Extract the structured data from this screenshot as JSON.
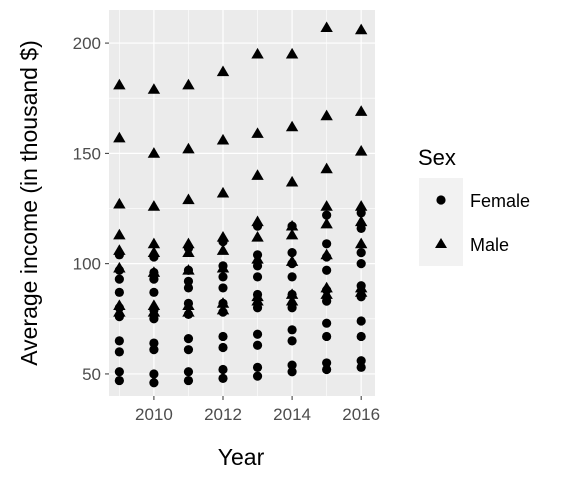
{
  "chart_data": {
    "type": "scatter",
    "title": "",
    "xlabel": "Year",
    "ylabel": "Average income (in thousand $)",
    "xlim": [
      2008.7,
      2016.4
    ],
    "ylim": [
      40,
      215
    ],
    "x_ticks": [
      2010,
      2012,
      2014,
      2016
    ],
    "x_tick_labels": [
      "2010",
      "2012",
      "2014",
      "2016"
    ],
    "y_ticks": [
      50,
      100,
      150,
      200
    ],
    "y_tick_labels": [
      "50",
      "100",
      "150",
      "200"
    ],
    "grid": true,
    "panel_background": "#ebebeb",
    "grid_color": "#ffffff",
    "point_color": "#000000",
    "legend": {
      "title": "Sex",
      "position": "right",
      "entries": [
        {
          "label": "Female",
          "shape": "circle"
        },
        {
          "label": "Male",
          "shape": "triangle"
        }
      ]
    },
    "series": [
      {
        "name": "Female",
        "shape": "circle",
        "points": [
          {
            "x": 2009,
            "y": 47
          },
          {
            "x": 2009,
            "y": 51
          },
          {
            "x": 2009,
            "y": 60
          },
          {
            "x": 2009,
            "y": 65
          },
          {
            "x": 2009,
            "y": 76
          },
          {
            "x": 2009,
            "y": 80
          },
          {
            "x": 2009,
            "y": 87
          },
          {
            "x": 2009,
            "y": 93
          },
          {
            "x": 2009,
            "y": 97
          },
          {
            "x": 2009,
            "y": 104
          },
          {
            "x": 2010,
            "y": 46
          },
          {
            "x": 2010,
            "y": 50
          },
          {
            "x": 2010,
            "y": 61
          },
          {
            "x": 2010,
            "y": 64
          },
          {
            "x": 2010,
            "y": 75
          },
          {
            "x": 2010,
            "y": 79
          },
          {
            "x": 2010,
            "y": 87
          },
          {
            "x": 2010,
            "y": 93
          },
          {
            "x": 2010,
            "y": 96
          },
          {
            "x": 2010,
            "y": 103
          },
          {
            "x": 2011,
            "y": 47
          },
          {
            "x": 2011,
            "y": 51
          },
          {
            "x": 2011,
            "y": 61
          },
          {
            "x": 2011,
            "y": 66
          },
          {
            "x": 2011,
            "y": 77
          },
          {
            "x": 2011,
            "y": 82
          },
          {
            "x": 2011,
            "y": 89
          },
          {
            "x": 2011,
            "y": 92
          },
          {
            "x": 2011,
            "y": 97
          },
          {
            "x": 2011,
            "y": 107
          },
          {
            "x": 2012,
            "y": 48
          },
          {
            "x": 2012,
            "y": 52
          },
          {
            "x": 2012,
            "y": 62
          },
          {
            "x": 2012,
            "y": 67
          },
          {
            "x": 2012,
            "y": 78
          },
          {
            "x": 2012,
            "y": 82
          },
          {
            "x": 2012,
            "y": 89
          },
          {
            "x": 2012,
            "y": 94
          },
          {
            "x": 2012,
            "y": 99
          },
          {
            "x": 2012,
            "y": 110
          },
          {
            "x": 2013,
            "y": 49
          },
          {
            "x": 2013,
            "y": 53
          },
          {
            "x": 2013,
            "y": 63
          },
          {
            "x": 2013,
            "y": 68
          },
          {
            "x": 2013,
            "y": 80
          },
          {
            "x": 2013,
            "y": 86
          },
          {
            "x": 2013,
            "y": 94
          },
          {
            "x": 2013,
            "y": 99
          },
          {
            "x": 2013,
            "y": 104
          },
          {
            "x": 2013,
            "y": 117
          },
          {
            "x": 2014,
            "y": 51
          },
          {
            "x": 2014,
            "y": 54
          },
          {
            "x": 2014,
            "y": 65
          },
          {
            "x": 2014,
            "y": 70
          },
          {
            "x": 2014,
            "y": 80
          },
          {
            "x": 2014,
            "y": 86
          },
          {
            "x": 2014,
            "y": 94
          },
          {
            "x": 2014,
            "y": 100
          },
          {
            "x": 2014,
            "y": 105
          },
          {
            "x": 2014,
            "y": 117
          },
          {
            "x": 2015,
            "y": 52
          },
          {
            "x": 2015,
            "y": 55
          },
          {
            "x": 2015,
            "y": 67
          },
          {
            "x": 2015,
            "y": 73
          },
          {
            "x": 2015,
            "y": 83
          },
          {
            "x": 2015,
            "y": 88
          },
          {
            "x": 2015,
            "y": 97
          },
          {
            "x": 2015,
            "y": 103
          },
          {
            "x": 2015,
            "y": 109
          },
          {
            "x": 2015,
            "y": 122
          },
          {
            "x": 2016,
            "y": 53
          },
          {
            "x": 2016,
            "y": 56
          },
          {
            "x": 2016,
            "y": 67
          },
          {
            "x": 2016,
            "y": 74
          },
          {
            "x": 2016,
            "y": 85
          },
          {
            "x": 2016,
            "y": 90
          },
          {
            "x": 2016,
            "y": 100
          },
          {
            "x": 2016,
            "y": 105
          },
          {
            "x": 2016,
            "y": 116
          },
          {
            "x": 2016,
            "y": 123
          }
        ]
      },
      {
        "name": "Male",
        "shape": "triangle",
        "points": [
          {
            "x": 2009,
            "y": 78
          },
          {
            "x": 2009,
            "y": 81
          },
          {
            "x": 2009,
            "y": 98
          },
          {
            "x": 2009,
            "y": 106
          },
          {
            "x": 2009,
            "y": 113
          },
          {
            "x": 2009,
            "y": 127
          },
          {
            "x": 2009,
            "y": 157
          },
          {
            "x": 2009,
            "y": 181
          },
          {
            "x": 2010,
            "y": 78
          },
          {
            "x": 2010,
            "y": 81
          },
          {
            "x": 2010,
            "y": 96
          },
          {
            "x": 2010,
            "y": 105
          },
          {
            "x": 2010,
            "y": 109
          },
          {
            "x": 2010,
            "y": 126
          },
          {
            "x": 2010,
            "y": 150
          },
          {
            "x": 2010,
            "y": 179
          },
          {
            "x": 2011,
            "y": 78
          },
          {
            "x": 2011,
            "y": 81
          },
          {
            "x": 2011,
            "y": 97
          },
          {
            "x": 2011,
            "y": 105
          },
          {
            "x": 2011,
            "y": 109
          },
          {
            "x": 2011,
            "y": 129
          },
          {
            "x": 2011,
            "y": 152
          },
          {
            "x": 2011,
            "y": 181
          },
          {
            "x": 2012,
            "y": 79
          },
          {
            "x": 2012,
            "y": 82
          },
          {
            "x": 2012,
            "y": 98
          },
          {
            "x": 2012,
            "y": 106
          },
          {
            "x": 2012,
            "y": 112
          },
          {
            "x": 2012,
            "y": 132
          },
          {
            "x": 2012,
            "y": 156
          },
          {
            "x": 2012,
            "y": 187
          },
          {
            "x": 2013,
            "y": 83
          },
          {
            "x": 2013,
            "y": 85
          },
          {
            "x": 2013,
            "y": 102
          },
          {
            "x": 2013,
            "y": 112
          },
          {
            "x": 2013,
            "y": 119
          },
          {
            "x": 2013,
            "y": 140
          },
          {
            "x": 2013,
            "y": 159
          },
          {
            "x": 2013,
            "y": 195
          },
          {
            "x": 2014,
            "y": 83
          },
          {
            "x": 2014,
            "y": 86
          },
          {
            "x": 2014,
            "y": 101
          },
          {
            "x": 2014,
            "y": 113
          },
          {
            "x": 2014,
            "y": 117
          },
          {
            "x": 2014,
            "y": 137
          },
          {
            "x": 2014,
            "y": 162
          },
          {
            "x": 2014,
            "y": 195
          },
          {
            "x": 2015,
            "y": 86
          },
          {
            "x": 2015,
            "y": 89
          },
          {
            "x": 2015,
            "y": 104
          },
          {
            "x": 2015,
            "y": 118
          },
          {
            "x": 2015,
            "y": 126
          },
          {
            "x": 2015,
            "y": 143
          },
          {
            "x": 2015,
            "y": 167
          },
          {
            "x": 2015,
            "y": 207
          },
          {
            "x": 2016,
            "y": 87
          },
          {
            "x": 2016,
            "y": 89
          },
          {
            "x": 2016,
            "y": 109
          },
          {
            "x": 2016,
            "y": 119
          },
          {
            "x": 2016,
            "y": 126
          },
          {
            "x": 2016,
            "y": 151
          },
          {
            "x": 2016,
            "y": 169
          },
          {
            "x": 2016,
            "y": 206
          }
        ]
      }
    ]
  }
}
